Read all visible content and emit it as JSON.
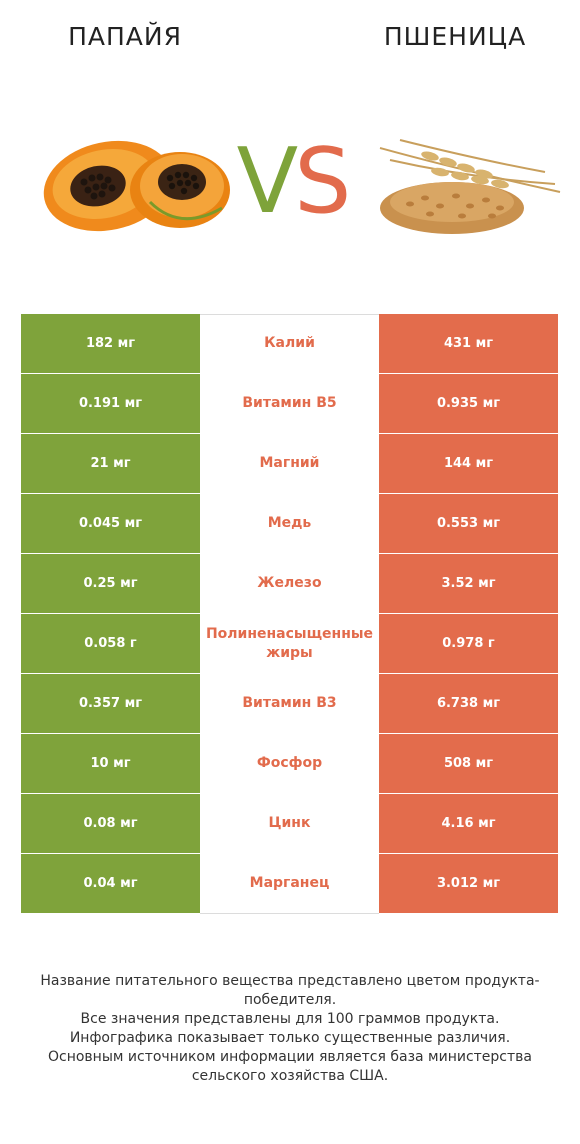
{
  "header": {
    "left_title": "ПАПАЙЯ",
    "right_title": "ПШЕНИЦА",
    "vs_v": "V",
    "vs_s": "S"
  },
  "colors": {
    "left": "#7fa33b",
    "right": "#e36c4c"
  },
  "rows": [
    {
      "nutrient": "Калий",
      "left": "182 мг",
      "right": "431 мг"
    },
    {
      "nutrient": "Витамин B5",
      "left": "0.191 мг",
      "right": "0.935 мг"
    },
    {
      "nutrient": "Магний",
      "left": "21 мг",
      "right": "144 мг"
    },
    {
      "nutrient": "Медь",
      "left": "0.045 мг",
      "right": "0.553 мг"
    },
    {
      "nutrient": "Железо",
      "left": "0.25 мг",
      "right": "3.52 мг"
    },
    {
      "nutrient": "Полиненасыщенные жиры",
      "left": "0.058 г",
      "right": "0.978 г"
    },
    {
      "nutrient": "Витамин B3",
      "left": "0.357 мг",
      "right": "6.738 мг"
    },
    {
      "nutrient": "Фосфор",
      "left": "10 мг",
      "right": "508 мг"
    },
    {
      "nutrient": "Цинк",
      "left": "0.08 мг",
      "right": "4.16 мг"
    },
    {
      "nutrient": "Марганец",
      "left": "0.04 мг",
      "right": "3.012 мг"
    }
  ],
  "footer": {
    "line1": "Название питательного вещества представлено цветом продукта-победителя.",
    "line2": "Все значения представлены для 100 граммов продукта.",
    "line3": "Инфографика показывает только существенные различия.",
    "line4": "Основным источником информации является база министерства сельского хозяйства США."
  },
  "images": {
    "left": "papaya-illustration",
    "right": "wheat-illustration"
  }
}
